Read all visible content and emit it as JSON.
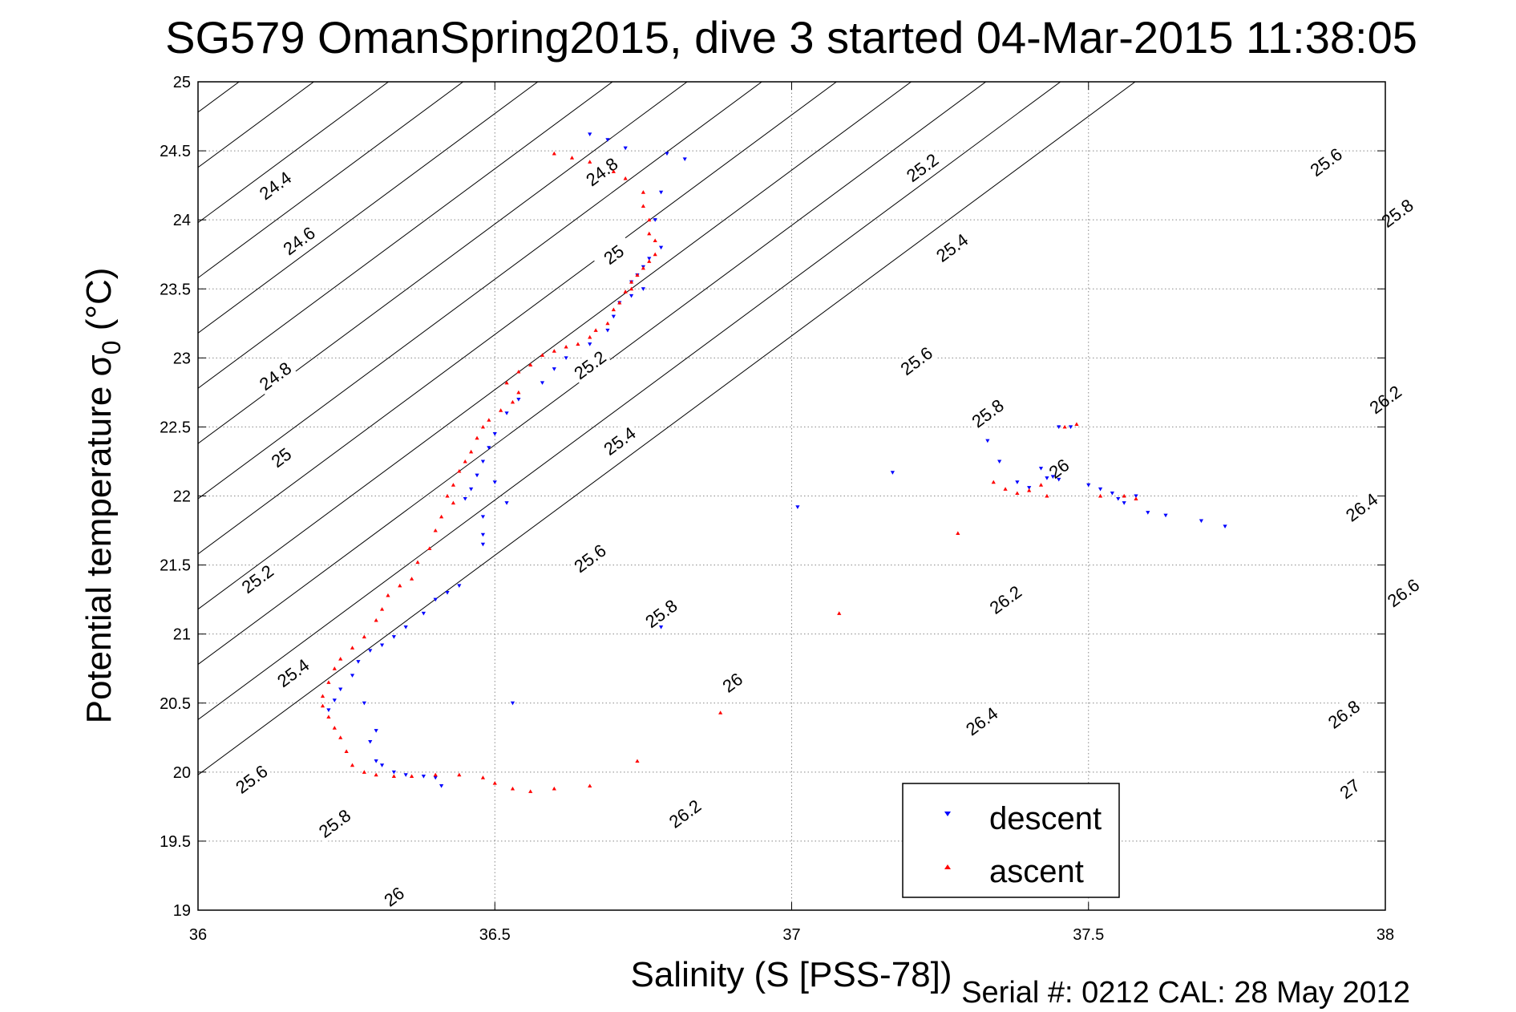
{
  "chart_data": {
    "type": "scatter",
    "title": "SG579 OmanSpring2015, dive 3 started 04-Mar-2015 11:38:05",
    "xlabel": "Salinity (S [PSS-78])",
    "ylabel_main": "Potential temperature σ",
    "ylabel_sub": "0",
    "ylabel_unit": " (°C)",
    "xlim": [
      36,
      38
    ],
    "ylim": [
      19,
      25
    ],
    "xticks": [
      "36",
      "36.5",
      "37",
      "37.5",
      "38"
    ],
    "yticks": [
      "19",
      "19.5",
      "20",
      "20.5",
      "21",
      "21.5",
      "22",
      "22.5",
      "23",
      "23.5",
      "24",
      "24.5",
      "25"
    ],
    "grid": true,
    "legend_position": "bottom-right",
    "series": [
      {
        "name": "descent",
        "color": "#0000ff",
        "marker": "triangle-down",
        "points": [
          [
            36.66,
            24.62
          ],
          [
            36.69,
            24.58
          ],
          [
            36.72,
            24.52
          ],
          [
            36.79,
            24.48
          ],
          [
            36.82,
            24.44
          ],
          [
            36.78,
            24.2
          ],
          [
            36.77,
            24.0
          ],
          [
            36.78,
            23.8
          ],
          [
            36.76,
            23.72
          ],
          [
            36.75,
            23.66
          ],
          [
            36.74,
            23.6
          ],
          [
            36.73,
            23.55
          ],
          [
            36.75,
            23.5
          ],
          [
            36.73,
            23.45
          ],
          [
            36.71,
            23.4
          ],
          [
            36.7,
            23.3
          ],
          [
            36.69,
            23.2
          ],
          [
            36.66,
            23.1
          ],
          [
            36.62,
            23.0
          ],
          [
            36.6,
            22.92
          ],
          [
            36.58,
            22.82
          ],
          [
            36.54,
            22.7
          ],
          [
            36.52,
            22.6
          ],
          [
            36.5,
            22.45
          ],
          [
            36.49,
            22.35
          ],
          [
            36.48,
            22.25
          ],
          [
            36.47,
            22.15
          ],
          [
            36.46,
            22.05
          ],
          [
            36.45,
            21.98
          ],
          [
            36.5,
            22.1
          ],
          [
            36.52,
            21.95
          ],
          [
            36.48,
            21.85
          ],
          [
            36.48,
            21.72
          ],
          [
            36.48,
            21.65
          ],
          [
            36.44,
            21.35
          ],
          [
            36.42,
            21.3
          ],
          [
            36.4,
            21.25
          ],
          [
            36.38,
            21.15
          ],
          [
            36.35,
            21.05
          ],
          [
            36.33,
            20.98
          ],
          [
            36.31,
            20.92
          ],
          [
            36.29,
            20.88
          ],
          [
            36.27,
            20.8
          ],
          [
            36.26,
            20.7
          ],
          [
            36.24,
            20.6
          ],
          [
            36.23,
            20.52
          ],
          [
            36.22,
            20.45
          ],
          [
            36.28,
            20.5
          ],
          [
            36.3,
            20.3
          ],
          [
            36.29,
            20.22
          ],
          [
            36.3,
            20.08
          ],
          [
            36.31,
            20.05
          ],
          [
            36.33,
            20.0
          ],
          [
            36.35,
            19.98
          ],
          [
            36.38,
            19.97
          ],
          [
            36.4,
            19.96
          ],
          [
            36.41,
            19.9
          ],
          [
            36.53,
            20.5
          ],
          [
            36.78,
            21.05
          ],
          [
            37.01,
            21.92
          ],
          [
            37.17,
            22.17
          ],
          [
            37.33,
            22.4
          ],
          [
            37.35,
            22.25
          ],
          [
            37.38,
            22.1
          ],
          [
            37.4,
            22.06
          ],
          [
            37.42,
            22.2
          ],
          [
            37.43,
            22.13
          ],
          [
            37.44,
            22.14
          ],
          [
            37.45,
            22.12
          ],
          [
            37.47,
            22.5
          ],
          [
            37.45,
            22.5
          ],
          [
            37.5,
            22.08
          ],
          [
            37.52,
            22.05
          ],
          [
            37.54,
            22.02
          ],
          [
            37.55,
            21.98
          ],
          [
            37.56,
            21.95
          ],
          [
            37.58,
            22.0
          ],
          [
            37.6,
            21.88
          ],
          [
            37.63,
            21.86
          ],
          [
            37.69,
            21.82
          ],
          [
            37.73,
            21.78
          ]
        ]
      },
      {
        "name": "ascent",
        "color": "#ff0000",
        "marker": "triangle-up",
        "points": [
          [
            36.6,
            24.48
          ],
          [
            36.63,
            24.45
          ],
          [
            36.66,
            24.42
          ],
          [
            36.7,
            24.35
          ],
          [
            36.72,
            24.3
          ],
          [
            36.75,
            24.2
          ],
          [
            36.75,
            24.1
          ],
          [
            36.76,
            24.0
          ],
          [
            36.76,
            23.9
          ],
          [
            36.77,
            23.85
          ],
          [
            36.77,
            23.75
          ],
          [
            36.76,
            23.7
          ],
          [
            36.75,
            23.65
          ],
          [
            36.74,
            23.6
          ],
          [
            36.73,
            23.55
          ],
          [
            36.73,
            23.5
          ],
          [
            36.72,
            23.48
          ],
          [
            36.71,
            23.4
          ],
          [
            36.7,
            23.35
          ],
          [
            36.69,
            23.25
          ],
          [
            36.67,
            23.2
          ],
          [
            36.66,
            23.15
          ],
          [
            36.64,
            23.1
          ],
          [
            36.62,
            23.08
          ],
          [
            36.6,
            23.05
          ],
          [
            36.58,
            23.02
          ],
          [
            36.56,
            22.95
          ],
          [
            36.54,
            22.9
          ],
          [
            36.52,
            22.82
          ],
          [
            36.54,
            22.75
          ],
          [
            36.53,
            22.68
          ],
          [
            36.51,
            22.62
          ],
          [
            36.49,
            22.55
          ],
          [
            36.48,
            22.5
          ],
          [
            36.47,
            22.42
          ],
          [
            36.46,
            22.32
          ],
          [
            36.45,
            22.25
          ],
          [
            36.44,
            22.18
          ],
          [
            36.43,
            22.08
          ],
          [
            36.42,
            22.0
          ],
          [
            36.43,
            21.95
          ],
          [
            36.41,
            21.85
          ],
          [
            36.4,
            21.75
          ],
          [
            36.39,
            21.62
          ],
          [
            36.37,
            21.52
          ],
          [
            36.36,
            21.4
          ],
          [
            36.34,
            21.35
          ],
          [
            36.32,
            21.28
          ],
          [
            36.31,
            21.18
          ],
          [
            36.3,
            21.1
          ],
          [
            36.28,
            20.98
          ],
          [
            36.26,
            20.9
          ],
          [
            36.24,
            20.82
          ],
          [
            36.23,
            20.75
          ],
          [
            36.22,
            20.65
          ],
          [
            36.21,
            20.55
          ],
          [
            36.21,
            20.48
          ],
          [
            36.22,
            20.4
          ],
          [
            36.23,
            20.32
          ],
          [
            36.24,
            20.25
          ],
          [
            36.25,
            20.15
          ],
          [
            36.26,
            20.05
          ],
          [
            36.28,
            20.0
          ],
          [
            36.3,
            19.98
          ],
          [
            36.33,
            19.97
          ],
          [
            36.36,
            19.97
          ],
          [
            36.4,
            19.98
          ],
          [
            36.44,
            19.98
          ],
          [
            36.48,
            19.96
          ],
          [
            36.5,
            19.92
          ],
          [
            36.53,
            19.88
          ],
          [
            36.56,
            19.86
          ],
          [
            36.6,
            19.88
          ],
          [
            36.66,
            19.9
          ],
          [
            36.74,
            20.08
          ],
          [
            36.88,
            20.43
          ],
          [
            37.08,
            21.15
          ],
          [
            37.28,
            21.73
          ],
          [
            37.34,
            22.1
          ],
          [
            37.36,
            22.05
          ],
          [
            37.38,
            22.02
          ],
          [
            37.4,
            22.04
          ],
          [
            37.42,
            22.08
          ],
          [
            37.43,
            22.0
          ],
          [
            37.46,
            22.5
          ],
          [
            37.48,
            22.52
          ],
          [
            37.52,
            22.0
          ],
          [
            37.56,
            22.0
          ],
          [
            37.58,
            21.98
          ]
        ]
      }
    ],
    "contours": [
      {
        "label": "24.4",
        "label_pos": [
          36.13,
          24.25
        ]
      },
      {
        "label": "24.6",
        "label_pos": [
          36.17,
          23.85
        ]
      },
      {
        "label": "24.8",
        "label_pos": [
          36.13,
          22.87
        ]
      },
      {
        "label": "24.8",
        "label_pos": [
          36.68,
          24.35
        ]
      },
      {
        "label": "25",
        "label_pos": [
          36.14,
          22.28
        ]
      },
      {
        "label": "25",
        "label_pos": [
          36.7,
          23.75
        ]
      },
      {
        "label": "25.2",
        "label_pos": [
          36.1,
          21.4
        ]
      },
      {
        "label": "25.2",
        "label_pos": [
          36.66,
          22.95
        ]
      },
      {
        "label": "25.2",
        "label_pos": [
          37.22,
          24.38
        ]
      },
      {
        "label": "25.4",
        "label_pos": [
          36.16,
          20.72
        ]
      },
      {
        "label": "25.4",
        "label_pos": [
          36.71,
          22.4
        ]
      },
      {
        "label": "25.4",
        "label_pos": [
          37.27,
          23.8
        ]
      },
      {
        "label": "25.6",
        "label_pos": [
          36.09,
          19.95
        ]
      },
      {
        "label": "25.6",
        "label_pos": [
          36.66,
          21.55
        ]
      },
      {
        "label": "25.6",
        "label_pos": [
          37.21,
          22.98
        ]
      },
      {
        "label": "25.6",
        "label_pos": [
          37.9,
          24.42
        ]
      },
      {
        "label": "25.8",
        "label_pos": [
          36.23,
          19.63
        ]
      },
      {
        "label": "25.8",
        "label_pos": [
          36.78,
          21.15
        ]
      },
      {
        "label": "25.8",
        "label_pos": [
          37.33,
          22.6
        ]
      },
      {
        "label": "25.8",
        "label_pos": [
          38.02,
          24.05
        ]
      },
      {
        "label": "26",
        "label_pos": [
          36.33,
          19.1
        ]
      },
      {
        "label": "26",
        "label_pos": [
          36.9,
          20.65
        ]
      },
      {
        "label": "26",
        "label_pos": [
          37.45,
          22.2
        ]
      },
      {
        "label": "26.2",
        "label_pos": [
          36.82,
          19.7
        ]
      },
      {
        "label": "26.2",
        "label_pos": [
          37.36,
          21.25
        ]
      },
      {
        "label": "26.2",
        "label_pos": [
          38.0,
          22.7
        ]
      },
      {
        "label": "26.4",
        "label_pos": [
          37.32,
          20.37
        ]
      },
      {
        "label": "26.4",
        "label_pos": [
          37.96,
          21.92
        ]
      },
      {
        "label": "26.6",
        "label_pos": [
          38.03,
          21.3
        ]
      },
      {
        "label": "26.8",
        "label_pos": [
          37.93,
          20.42
        ]
      },
      {
        "label": "27",
        "label_pos": [
          37.94,
          19.88
        ]
      }
    ],
    "footer": "Serial #: 0212  CAL: 28 May 2012"
  }
}
